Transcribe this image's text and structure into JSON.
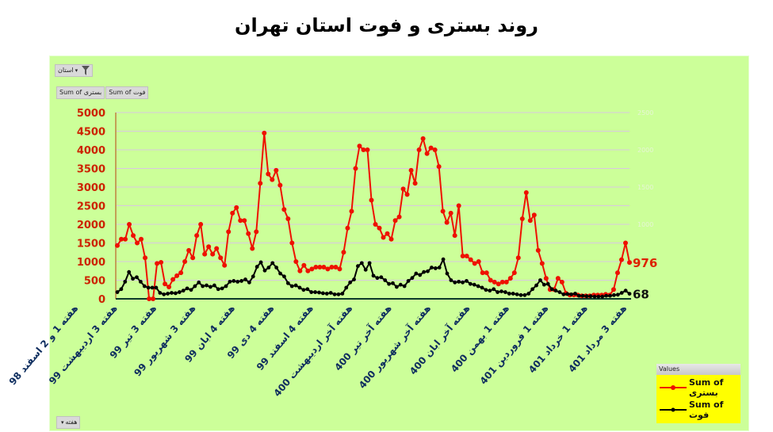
{
  "title": "روند بستری و فوت استان تهران",
  "controls": {
    "filter_field_label": "استان",
    "value_field_pills": [
      "Sum of بستری",
      "Sum of فوت"
    ],
    "axis_field_label": "هفته"
  },
  "legend": {
    "header": "Values",
    "items": [
      {
        "label": "Sum of بستری",
        "color": "#ee1100"
      },
      {
        "label": "Sum of فوت",
        "color": "#000000"
      }
    ]
  },
  "end_labels": {
    "primary": "976",
    "secondary": "68"
  },
  "colors": {
    "background": "#ccff99",
    "hospitalized": "#ee1100",
    "deaths": "#000000",
    "primary_axis_text": "#cc2200",
    "x_label_text": "#0d2d5e"
  },
  "chart_data": {
    "type": "line",
    "title": "روند بستری و فوت استان تهران",
    "xlabel": "",
    "ylabel": "",
    "y_primary": {
      "range": [
        0,
        5000
      ],
      "ticks": [
        0,
        500,
        1000,
        1500,
        2000,
        2500,
        3000,
        3500,
        4000,
        4500,
        5000
      ]
    },
    "y_secondary": {
      "range": [
        0,
        2500
      ],
      "ticks": [
        0,
        500,
        1000,
        1500,
        2000,
        2500
      ]
    },
    "grid": true,
    "legend_position": "bottom-right",
    "x_tick_labels": [
      "هفته 1 و 2 اسفند 98",
      "هفته 3 اردیبهشت 99",
      "هفته 3 تیر 99",
      "هفته 3 شهریور 99",
      "هفته 4 ابان 99",
      "هفته 4 دی 99",
      "هفته 4 اسفند 99",
      "هفته آخر اردیبهشت 400",
      "هفته آخر تیر 400",
      "هفته آخر شهریور 400",
      "هفته آخر ابان 400",
      "هفته 1 بهمن 400",
      "هفته 1 فروردین 401",
      "هفته 1 خرداد 401",
      "هفته 3 مرداد 401"
    ],
    "series": [
      {
        "name": "Sum of بستری",
        "axis": "primary",
        "values": [
          1430,
          1600,
          1600,
          2000,
          1700,
          1500,
          1600,
          1100,
          0,
          0,
          950,
          980,
          400,
          320,
          520,
          620,
          700,
          1000,
          1300,
          1100,
          1700,
          2000,
          1200,
          1400,
          1200,
          1350,
          1100,
          900,
          1800,
          2300,
          2450,
          2100,
          2100,
          1750,
          1350,
          1800,
          3100,
          4450,
          3350,
          3200,
          3450,
          3050,
          2400,
          2150,
          1500,
          1000,
          750,
          900,
          750,
          800,
          850,
          850,
          850,
          800,
          850,
          850,
          800,
          1250,
          1900,
          2350,
          3500,
          4100,
          4000,
          4000,
          2650,
          2000,
          1900,
          1650,
          1750,
          1600,
          2100,
          2200,
          2950,
          2800,
          3450,
          3100,
          4000,
          4300,
          3900,
          4050,
          4000,
          3550,
          2350,
          2050,
          2300,
          1700,
          2500,
          1150,
          1150,
          1050,
          950,
          1000,
          700,
          700,
          500,
          450,
          400,
          450,
          450,
          550,
          700,
          1100,
          2150,
          2850,
          2100,
          2250,
          1300,
          950,
          550,
          250,
          250,
          550,
          450,
          150,
          100,
          100,
          100,
          80,
          80,
          80,
          100,
          100,
          100,
          120,
          100,
          250,
          700,
          1050,
          1500,
          976
        ]
      },
      {
        "name": "Sum of فوت",
        "axis": "secondary",
        "values": [
          90,
          130,
          230,
          360,
          270,
          290,
          230,
          170,
          150,
          150,
          150,
          80,
          60,
          70,
          80,
          75,
          90,
          110,
          140,
          120,
          170,
          220,
          170,
          180,
          160,
          180,
          130,
          140,
          170,
          230,
          240,
          230,
          240,
          260,
          220,
          300,
          430,
          490,
          380,
          420,
          480,
          420,
          340,
          300,
          210,
          170,
          180,
          150,
          120,
          130,
          90,
          90,
          85,
          75,
          70,
          80,
          60,
          60,
          70,
          150,
          220,
          260,
          440,
          480,
          390,
          480,
          310,
          280,
          290,
          250,
          200,
          210,
          160,
          190,
          170,
          240,
          280,
          340,
          320,
          360,
          370,
          420,
          410,
          420,
          530,
          340,
          250,
          220,
          230,
          220,
          240,
          200,
          190,
          170,
          150,
          120,
          110,
          130,
          90,
          100,
          90,
          70,
          70,
          60,
          50,
          50,
          70,
          130,
          180,
          250,
          190,
          200,
          130,
          110,
          90,
          60,
          65,
          60,
          70,
          40,
          40,
          35,
          35,
          30,
          30,
          30,
          40,
          40,
          50,
          55,
          80,
          110,
          68
        ]
      }
    ]
  }
}
